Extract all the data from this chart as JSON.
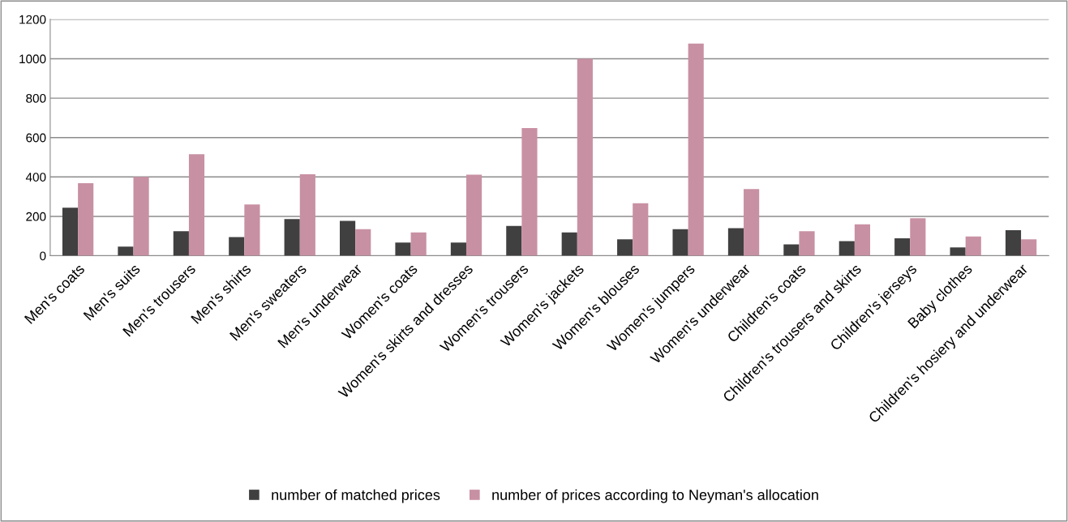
{
  "chart_data": {
    "type": "bar",
    "categories": [
      "Men's coats",
      "Men's suits",
      "Men's trousers",
      "Men's shirts",
      "Men's sweaters",
      "Men's underwear",
      "Women's coats",
      "Women's skirts and dresses",
      "Women's trousers",
      "Women's jackets",
      "Women's blouses",
      "Women's jumpers",
      "Women's underwear",
      "Children's coats",
      "Children's trousers and skirts",
      "Children's jerseys",
      "Baby clothes",
      "Children's hosiery and underwear"
    ],
    "series": [
      {
        "name": "number of matched prices",
        "color": "#404040",
        "values": [
          244,
          47,
          125,
          95,
          186,
          177,
          67,
          67,
          151,
          119,
          84,
          135,
          140,
          58,
          74,
          89,
          42,
          130
        ]
      },
      {
        "name": "number of prices according to Neyman's allocation",
        "color": "#c890a3",
        "values": [
          368,
          400,
          515,
          260,
          414,
          135,
          119,
          412,
          648,
          1000,
          267,
          1077,
          339,
          125,
          160,
          191,
          98,
          84
        ]
      }
    ],
    "ylim": [
      0,
      1200
    ],
    "yticks": [
      0,
      200,
      400,
      600,
      800,
      1000,
      1200
    ],
    "grid": "y",
    "legend": "bottom"
  }
}
